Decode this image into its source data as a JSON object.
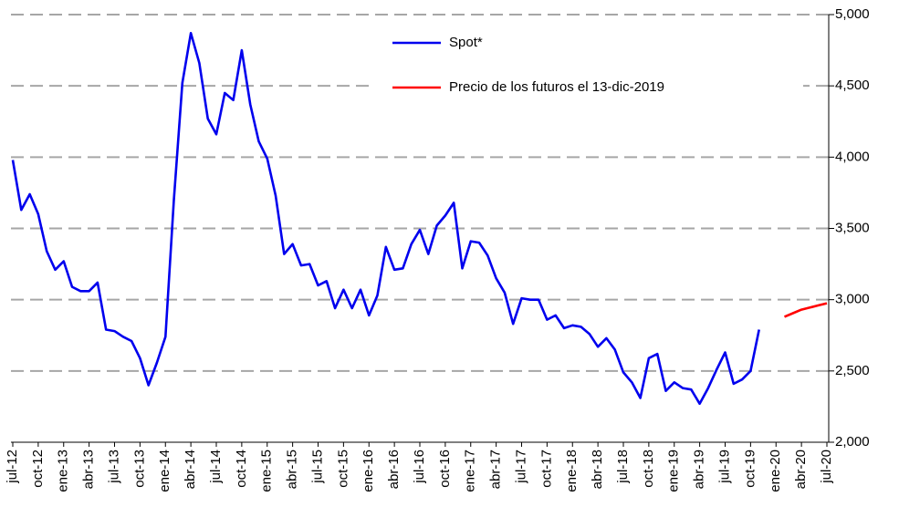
{
  "chart_data": {
    "type": "line",
    "categories": [
      "jul-12",
      null,
      null,
      "oct-12",
      null,
      null,
      "ene-13",
      null,
      null,
      "abr-13",
      null,
      null,
      "jul-13",
      null,
      null,
      "oct-13",
      null,
      null,
      "ene-14",
      null,
      null,
      "abr-14",
      null,
      null,
      "jul-14",
      null,
      null,
      "oct-14",
      null,
      null,
      "ene-15",
      null,
      null,
      "abr-15",
      null,
      null,
      "jul-15",
      null,
      null,
      "oct-15",
      null,
      null,
      "ene-16",
      null,
      null,
      "abr-16",
      null,
      null,
      "jul-16",
      null,
      null,
      "oct-16",
      null,
      null,
      "ene-17",
      null,
      null,
      "abr-17",
      null,
      null,
      "jul-17",
      null,
      null,
      "oct-17",
      null,
      null,
      "ene-18",
      null,
      null,
      "abr-18",
      null,
      null,
      "jul-18",
      null,
      null,
      "oct-18",
      null,
      null,
      "ene-19",
      null,
      null,
      "abr-19",
      null,
      null,
      "jul-19",
      null,
      null,
      "oct-19",
      null,
      null,
      "ene-20",
      null,
      null,
      "abr-20",
      null,
      null,
      "jul-20"
    ],
    "series": [
      {
        "name": "Spot*",
        "color": "#0000ee",
        "values": [
          3980,
          3630,
          3740,
          3600,
          3340,
          3210,
          3270,
          3090,
          3060,
          3060,
          3120,
          2790,
          2780,
          2740,
          2710,
          2590,
          2400,
          2560,
          2740,
          3700,
          4520,
          4870,
          4660,
          4270,
          4160,
          4450,
          4400,
          4750,
          4370,
          4110,
          3990,
          3730,
          3320,
          3390,
          3240,
          3250,
          3100,
          3130,
          2940,
          3070,
          2940,
          3070,
          2890,
          3030,
          3370,
          3210,
          3220,
          3390,
          3490,
          3320,
          3520,
          3590,
          3680,
          3220,
          3410,
          3400,
          3310,
          3150,
          3050,
          2830,
          3010,
          3000,
          3000,
          2860,
          2890,
          2800,
          2820,
          2810,
          2760,
          2670,
          2730,
          2650,
          2490,
          2420,
          2310,
          2590,
          2620,
          2360,
          2420,
          2380,
          2370,
          2270,
          2380,
          2510,
          2630,
          2410,
          2440,
          2500,
          2790,
          null,
          null,
          null,
          null,
          null,
          null,
          null,
          null
        ]
      },
      {
        "name": "Precio de los futuros el 13-dic-2019",
        "color": "#ff0000",
        "values": [
          null,
          null,
          null,
          null,
          null,
          null,
          null,
          null,
          null,
          null,
          null,
          null,
          null,
          null,
          null,
          null,
          null,
          null,
          null,
          null,
          null,
          null,
          null,
          null,
          null,
          null,
          null,
          null,
          null,
          null,
          null,
          null,
          null,
          null,
          null,
          null,
          null,
          null,
          null,
          null,
          null,
          null,
          null,
          null,
          null,
          null,
          null,
          null,
          null,
          null,
          null,
          null,
          null,
          null,
          null,
          null,
          null,
          null,
          null,
          null,
          null,
          null,
          null,
          null,
          null,
          null,
          null,
          null,
          null,
          null,
          null,
          null,
          null,
          null,
          null,
          null,
          null,
          null,
          null,
          null,
          null,
          null,
          null,
          null,
          null,
          null,
          null,
          null,
          null,
          null,
          null,
          2880,
          2905,
          2930,
          2945,
          2960,
          2975
        ]
      }
    ],
    "ylim": [
      2000,
      5000
    ],
    "yticks": [
      {
        "value": 2000,
        "label": "2,000"
      },
      {
        "value": 2500,
        "label": "2,500"
      },
      {
        "value": 3000,
        "label": "3,000"
      },
      {
        "value": 3500,
        "label": "3,500"
      },
      {
        "value": 4000,
        "label": "4,000"
      },
      {
        "value": 4500,
        "label": "4,500"
      },
      {
        "value": 5000,
        "label": "5,000"
      }
    ],
    "grid": true,
    "y_axis_side": "right",
    "legend": "top"
  }
}
